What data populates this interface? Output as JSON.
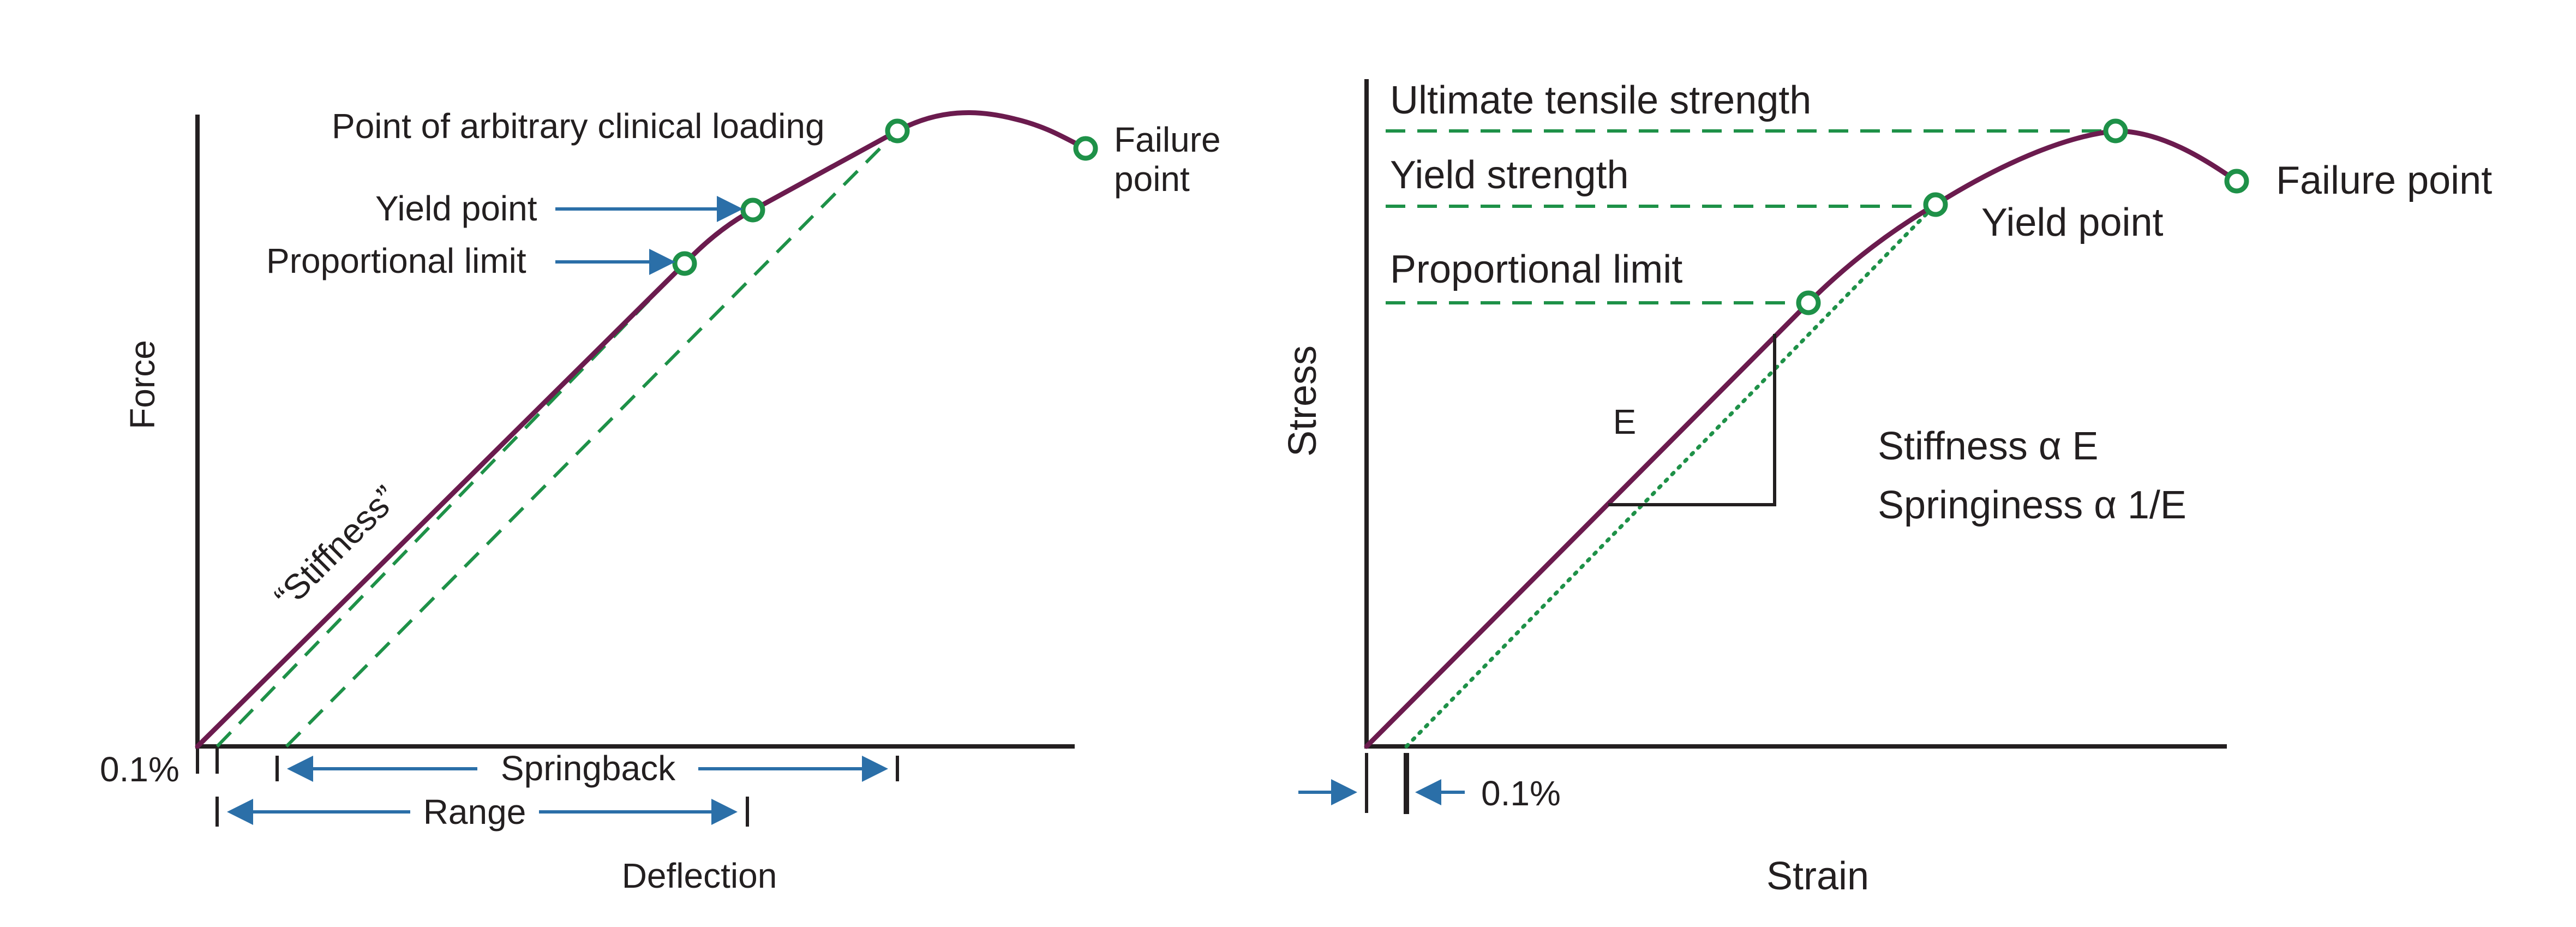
{
  "colors": {
    "curve": "#6b1b4e",
    "guide": "#1e9148",
    "arrow": "#2b6fa8",
    "text": "#231f20"
  },
  "left_diagram": {
    "y_axis_label": "Force",
    "x_axis_label": "Deflection",
    "slope_label": "“Stiffness”",
    "point_arbitrary_loading": "Point of arbitrary clinical loading",
    "failure_line1": "Failure",
    "failure_line2": "point",
    "yield_point": "Yield point",
    "proportional_limit": "Proportional limit",
    "offset_label": "0.1%",
    "springback": "Springback",
    "range": "Range"
  },
  "right_diagram": {
    "y_axis_label": "Stress",
    "x_axis_label": "Strain",
    "ultimate_tensile_strength": "Ultimate tensile strength",
    "yield_strength": "Yield strength",
    "proportional_limit": "Proportional limit",
    "yield_point": "Yield point",
    "failure_point": "Failure point",
    "modulus_label": "E",
    "stiffness_relation": "Stiffness α E",
    "springiness_relation": "Springiness α 1/E",
    "offset_label": "0.1%"
  }
}
